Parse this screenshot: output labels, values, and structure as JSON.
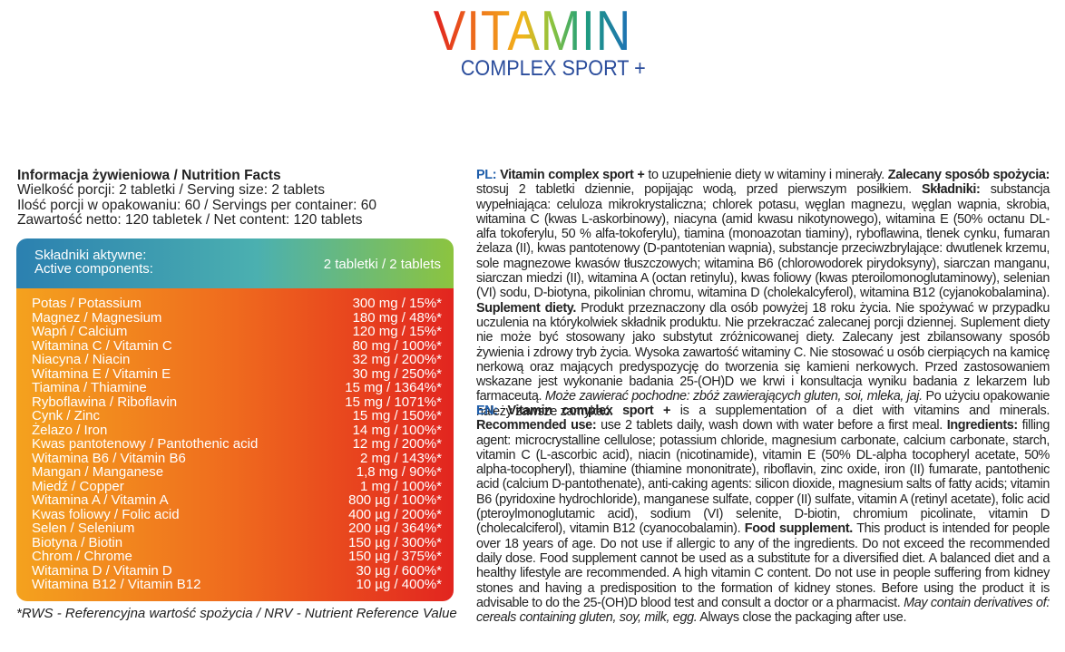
{
  "header": {
    "title": "VITAMIN",
    "subtitle": "COMPLEX SPORT +"
  },
  "facts": {
    "heading": "Informacja żywieniowa / Nutrition Facts",
    "lines": [
      "Wielkość porcji: 2 tabletki / Serving size: 2 tablets",
      "Ilość porcji w opakowaniu: 60 / Servings per container: 60",
      "Zawartość netto: 120 tabletek / Net content: 120 tablets"
    ]
  },
  "table": {
    "header": {
      "label_pl": "Składniki aktywne:",
      "label_en": "Active components:",
      "dose": "2 tabletki / 2 tablets"
    },
    "rows": [
      [
        "Potas / Potassium",
        "300 mg / 15%*"
      ],
      [
        "Magnez / Magnesium",
        "180 mg / 48%*"
      ],
      [
        "Wapń / Calcium",
        "120 mg / 15%*"
      ],
      [
        "Witamina C / Vitamin C",
        "80 mg / 100%*"
      ],
      [
        "Niacyna / Niacin",
        "32 mg / 200%*"
      ],
      [
        "Witamina E / Vitamin E",
        "30 mg / 250%*"
      ],
      [
        "Tiamina / Thiamine",
        "15 mg / 1364%*"
      ],
      [
        "Ryboflawina / Riboflavin",
        "15 mg / 1071%*"
      ],
      [
        "Cynk / Zinc",
        "15 mg / 150%*"
      ],
      [
        "Żelazo / Iron",
        "14 mg / 100%*"
      ],
      [
        "Kwas pantotenowy / Pantothenic acid",
        "12 mg / 200%*"
      ],
      [
        "Witamina B6 / Vitamin B6",
        "2 mg / 143%*"
      ],
      [
        "Mangan / Manganese",
        "1,8 mg / 90%*"
      ],
      [
        "Miedź / Copper",
        "1 mg / 100%*"
      ],
      [
        "Witamina A / Vitamin A",
        "800 µg / 100%*"
      ],
      [
        "Kwas foliowy / Folic acid",
        "400 µg / 200%*"
      ],
      [
        "Selen / Selenium",
        "200 µg / 364%*"
      ],
      [
        "Biotyna / Biotin",
        "150 µg / 300%*"
      ],
      [
        "Chrom / Chrome",
        "150 µg / 375%*"
      ],
      [
        "Witamina D / Vitamin D",
        "30 µg / 600%*"
      ],
      [
        "Witamina B12 / Vitamin B12",
        "10 µg / 400%*"
      ]
    ]
  },
  "footnote": "*RWS - Referencyjna wartość spożycia / NRV - Nutrient Reference Value",
  "pl": [
    "PL:",
    " Vitamin complex sport +",
    " to uzupełnienie diety w witaminy i minerały. ",
    "Zalecany sposób spożycia:",
    " stosuj 2 tabletki dziennie, popijając wodą, przed pierwszym posiłkiem. ",
    "Składniki:",
    " substancja wypełniająca: celuloza mikrokrystaliczna; chlorek potasu, węglan magnezu, węglan wapnia, skrobia, witamina C (kwas L-askorbinowy), niacyna (amid kwasu nikotynowego), witamina E (50% octanu DL-alfa tokoferylu, 50 % alfa-tokoferylu), tiamina (monoazotan tiaminy), ryboflawina, tlenek cynku, fumaran żelaza (II), kwas pantotenowy (D-pantotenian wapnia), substancje przeciwzbrylające: dwutlenek krzemu, sole magnezowe kwasów tłuszczowych; witamina B6 (chlorowodorek pirydoksyny), siarczan manganu, siarczan miedzi (II), witamina A (octan retinylu), kwas foliowy (kwas pteroilomonoglutaminowy), selenian (VI) sodu, D-biotyna, pikolinian chromu, witamina D (cholekalcyferol), witamina B12 (cyjanokobalamina). ",
    "Suplement diety.",
    " Produkt przeznaczony dla osób powyżej 18 roku życia. Nie spożywać w przypadku uczulenia na którykolwiek składnik produktu. Nie przekraczać zalecanej porcji dziennej. Suplement diety nie może być stosowany jako substytut zróżnicowanej diety. Zalecany jest zbilansowany sposób żywienia i zdrowy tryb życia. Wysoka zawartość witaminy C. Nie stosować u osób cierpiących na kamicę nerkową oraz mających predyspozycję do tworzenia się kamieni nerkowych. Przed zastosowaniem wskazane jest wykonanie badania 25-(OH)D we krwi i konsultacja wyniku badania z lekarzem lub farmaceutą. ",
    "Może zawierać pochodne: zbóż zawierających gluten, soi, mleka, jaj.",
    " Po użyciu opakowanie należy zawsze zamykać."
  ],
  "en": [
    "EN:",
    " Vitamin complex sport +",
    " is a supplementation of a diet with vitamins and minerals. ",
    "Recommended use:",
    "  use 2 tablets daily, wash down with water before a first meal. ",
    "Ingredients:",
    " filling agent: microcrystalline cellulose; potassium chloride, magnesium carbonate, calcium carbonate, starch, vitamin C (L-ascorbic acid), niacin (nicotinamide), vitamin E (50% DL-alpha tocopheryl acetate, 50% alpha-tocopheryl), thiamine (thiamine mononitrate), riboflavin, zinc oxide, iron (II) fumarate, pantothenic acid (calcium D-pantothenate), anti-caking agents: silicon dioxide, magnesium salts of fatty acids; vitamin B6 (pyridoxine hydrochloride), manganese sulfate, copper (II) sulfate, vitamin A (retinyl acetate), folic acid (pteroylmonoglutamic acid), sodium (VI) selenite, D-biotin, chromium picolinate, vitamin D (cholecalciferol), vitamin B12 (cyanocobalamin). ",
    "Food supplement.",
    " This product is intended for people over 18 years of age. Do not use if allergic to any of the ingredients. Do not exceed the recommended daily dose. Food supplement cannot be used as a substitute for a diversified diet. A balanced diet and a healthy lifestyle are recommended. A high vitamin C content. Do not use in people suffering from kidney stones and having a predisposition to the formation of kidney stones. Before using the product it is advisable to do the 25-(OH)D blood test and consult a doctor or a pharmacist. ",
    "May contain derivatives of: cereals containing gluten, soy, milk, egg.",
    " Always close the packaging after use."
  ]
}
